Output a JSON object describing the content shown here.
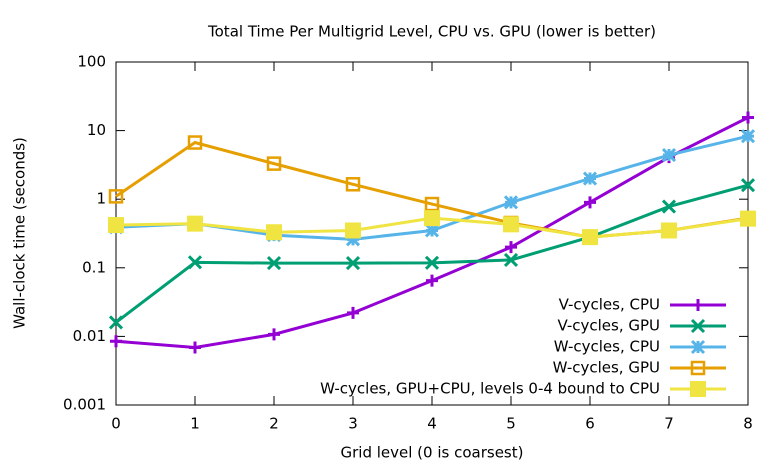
{
  "chart_data": {
    "type": "line",
    "title": "Total Time Per Multigrid Level, CPU vs. GPU (lower is better)",
    "x_label": "Grid level (0 is coarsest)",
    "y_label": "Wall-clock time (seconds)",
    "x": [
      0,
      1,
      2,
      3,
      4,
      5,
      6,
      7,
      8
    ],
    "xlim": [
      0,
      8
    ],
    "xticks": [
      0,
      1,
      2,
      3,
      4,
      5,
      6,
      7,
      8
    ],
    "ylim": [
      0.001,
      100
    ],
    "yticks": [
      0.001,
      0.01,
      0.1,
      1,
      10,
      100
    ],
    "log_y": true,
    "grid": false,
    "legend": "bottom-right",
    "series": [
      {
        "name": "V-cycles, CPU",
        "color": "#9400d3",
        "marker": "plus",
        "values": [
          0.0085,
          0.0069,
          0.0107,
          0.022,
          0.065,
          0.2,
          0.9,
          4.1,
          15.5
        ]
      },
      {
        "name": "V-cycles, GPU",
        "color": "#009e73",
        "marker": "cross",
        "values": [
          0.016,
          0.12,
          0.117,
          0.117,
          0.118,
          0.13,
          0.28,
          0.78,
          1.6
        ]
      },
      {
        "name": "W-cycles, CPU",
        "color": "#56b4e9",
        "marker": "star",
        "values": [
          0.39,
          0.44,
          0.3,
          0.26,
          0.35,
          0.9,
          2.0,
          4.4,
          8.3
        ]
      },
      {
        "name": "W-cycles, GPU",
        "color": "#e69f00",
        "marker": "open-square",
        "values": [
          1.1,
          6.7,
          3.3,
          1.65,
          0.85,
          0.45,
          0.28,
          0.35,
          0.53
        ]
      },
      {
        "name": "W-cycles, GPU+CPU, levels 0-4 bound to CPU",
        "color": "#f0e442",
        "marker": "filled-square",
        "values": [
          0.42,
          0.44,
          0.33,
          0.35,
          0.53,
          0.43,
          0.28,
          0.35,
          0.52
        ]
      }
    ]
  }
}
